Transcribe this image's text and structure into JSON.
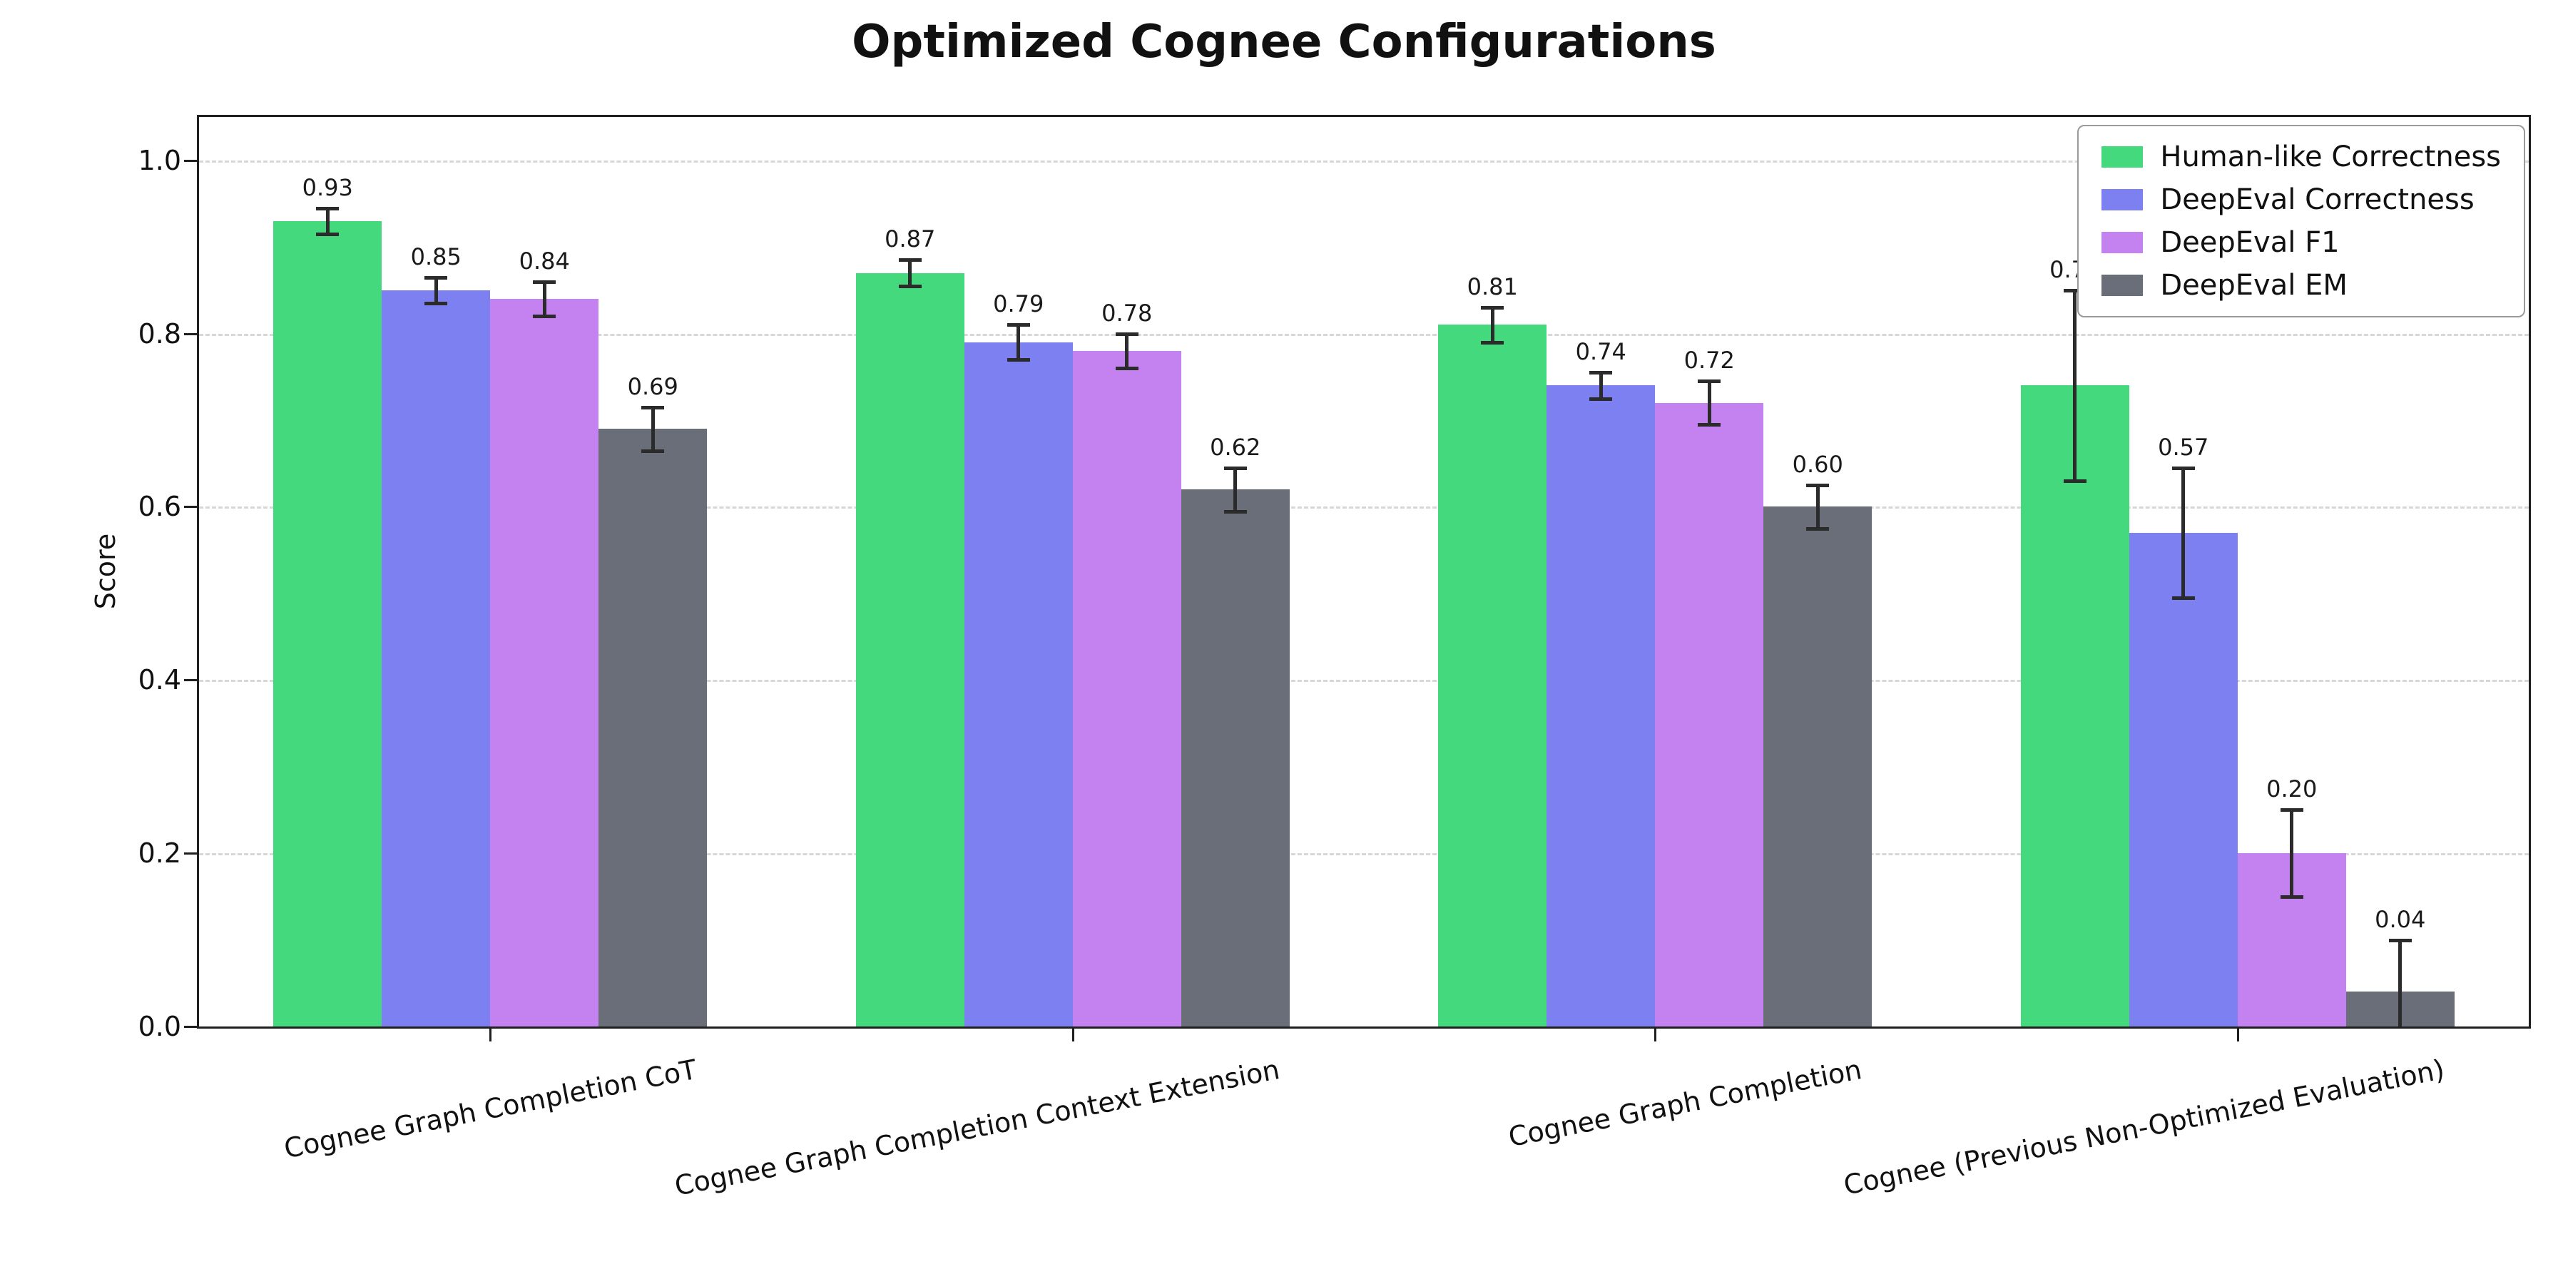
{
  "chart_data": {
    "type": "bar",
    "title": "Optimized Cognee Configurations",
    "xlabel": "",
    "ylabel": "Score",
    "ylim": [
      0,
      1.05
    ],
    "yticks": [
      0,
      0.2,
      0.4,
      0.6,
      0.8,
      1.0
    ],
    "grid": "dashed-horizontal",
    "legend_position": "upper right",
    "bar_value_labels": true,
    "error_bar_color": "#2b2b2b",
    "categories": [
      "Cognee Graph Completion CoT",
      "Cognee Graph Completion Context Extension",
      "Cognee Graph Completion",
      "Cognee (Previous Non-Optimized Evaluation)"
    ],
    "series": [
      {
        "name": "Human-like Correctness",
        "color": "#44d97c",
        "values": [
          0.93,
          0.87,
          0.81,
          0.74
        ],
        "errors": [
          0.015,
          0.015,
          0.02,
          0.11
        ]
      },
      {
        "name": "DeepEval Correctness",
        "color": "#7c80f0",
        "values": [
          0.85,
          0.79,
          0.74,
          0.57
        ],
        "errors": [
          0.015,
          0.02,
          0.015,
          0.075
        ]
      },
      {
        "name": "DeepEval F1",
        "color": "#c481f0",
        "values": [
          0.84,
          0.78,
          0.72,
          0.2
        ],
        "errors": [
          0.02,
          0.02,
          0.025,
          0.05
        ]
      },
      {
        "name": "DeepEval EM",
        "color": "#6a6e78",
        "values": [
          0.69,
          0.62,
          0.6,
          0.04
        ],
        "errors": [
          0.025,
          0.025,
          0.025,
          0.06
        ]
      }
    ]
  }
}
